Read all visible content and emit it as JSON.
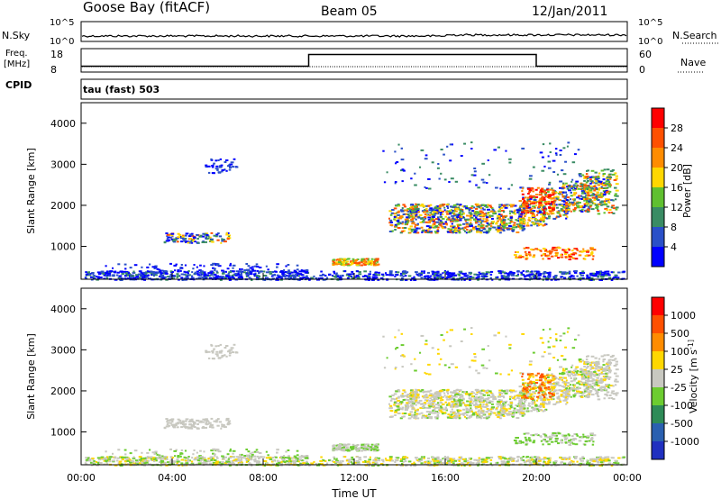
{
  "header": {
    "station": "Goose Bay (fitACF)",
    "beam": "Beam 05",
    "date": "12/Jan/2011"
  },
  "chart_data": [
    {
      "type": "line",
      "panel": "noise",
      "left_label": "N.Sky",
      "right_label": "N.Search",
      "left_ticks": [
        "10^5",
        "10^0"
      ],
      "right_ticks": [
        "10^5",
        "10^0"
      ]
    },
    {
      "type": "line",
      "panel": "frequency",
      "left_label": "Freq.",
      "left_unit": "[MHz]",
      "left_ticks": [
        "18",
        "8"
      ],
      "right_label": "Nave",
      "right_ticks": [
        "60",
        "0"
      ],
      "series": [
        {
          "name": "Freq. [MHz]",
          "x": [
            "00:00",
            "10:00",
            "10:00",
            "20:00",
            "20:00",
            "24:00"
          ],
          "values": [
            10.5,
            10.5,
            15.5,
            15.5,
            10.5,
            10.5
          ]
        }
      ]
    },
    {
      "type": "heatmap",
      "panel": "cpid",
      "label": "CPID",
      "mode": "tau (fast) 503"
    },
    {
      "type": "heatmap",
      "panel": "power",
      "ylabel": "Slant Range [km]",
      "yticks": [
        "1000",
        "2000",
        "3000",
        "4000"
      ],
      "ylim": [
        200,
        4500
      ],
      "colorbar": {
        "label": "Power [dB]",
        "ticks": [
          "4",
          "8",
          "12",
          "16",
          "20",
          "24",
          "28"
        ],
        "colors": [
          "#0000ff",
          "#2a50c8",
          "#3a8c64",
          "#60c030",
          "#ffd700",
          "#ff8c00",
          "#ff5000",
          "#ff0000"
        ]
      }
    },
    {
      "type": "heatmap",
      "panel": "velocity",
      "ylabel": "Slant Range [km]",
      "yticks": [
        "1000",
        "2000",
        "3000",
        "4000"
      ],
      "ylim": [
        200,
        4500
      ],
      "xticks": [
        "00:00",
        "04:00",
        "08:00",
        "12:00",
        "16:00",
        "20:00",
        "00:00"
      ],
      "xlabel": "Time UT",
      "colorbar": {
        "label": "Velocity [m s^-1]",
        "ticks": [
          "1000",
          "500",
          "100",
          "25",
          "-25",
          "-100",
          "-500",
          "-1000"
        ],
        "colors": [
          "#2030c0",
          "#2a60b0",
          "#2e8b57",
          "#6ccc30",
          "#c8c8c0",
          "#ffd700",
          "#ff8c00",
          "#ff5000",
          "#ff0000"
        ]
      }
    }
  ]
}
